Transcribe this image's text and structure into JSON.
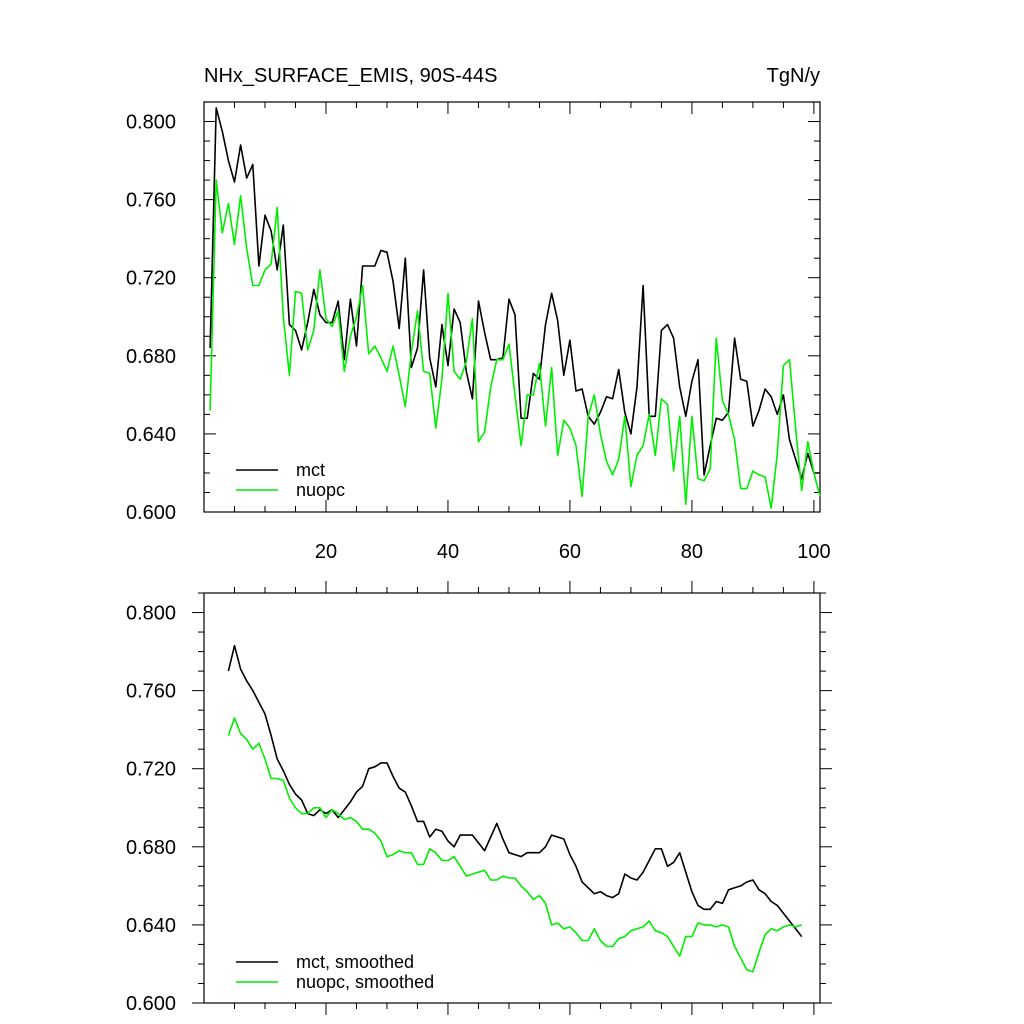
{
  "chart_data": [
    {
      "type": "line",
      "title_left": "NHx_SURFACE_EMIS, 90S-44S",
      "title_right": "TgN/y",
      "xlabel": "",
      "ylabel": "",
      "xlim": [
        0,
        101
      ],
      "ylim": [
        0.6,
        0.81
      ],
      "y_ticks": [
        "0.600",
        "0.640",
        "0.680",
        "0.720",
        "0.760",
        "0.800"
      ],
      "x_ticks": [
        "20",
        "40",
        "60",
        "80",
        "100"
      ],
      "legend_position": "bottom-left",
      "series": [
        {
          "name": "mct",
          "color": "#000000",
          "x": [
            1,
            2,
            3,
            4,
            5,
            6,
            7,
            8,
            9,
            10,
            11,
            12,
            13,
            14,
            15,
            16,
            17,
            18,
            19,
            20,
            21,
            22,
            23,
            24,
            25,
            26,
            27,
            28,
            29,
            30,
            31,
            32,
            33,
            34,
            35,
            36,
            37,
            38,
            39,
            40,
            41,
            42,
            43,
            44,
            45,
            46,
            47,
            48,
            49,
            50,
            51,
            52,
            53,
            54,
            55,
            56,
            57,
            58,
            59,
            60,
            61,
            62,
            63,
            64,
            65,
            66,
            67,
            68,
            69,
            70,
            71,
            72,
            73,
            74,
            75,
            76,
            77,
            78,
            79,
            80,
            81,
            82,
            83,
            84,
            85,
            86,
            87,
            88,
            89,
            90,
            91,
            92,
            93,
            94,
            95,
            96,
            97,
            98,
            99,
            100,
            101
          ],
          "values": [
            0.684,
            0.807,
            0.795,
            0.78,
            0.769,
            0.788,
            0.771,
            0.778,
            0.726,
            0.752,
            0.744,
            0.724,
            0.747,
            0.696,
            0.693,
            0.683,
            0.697,
            0.714,
            0.701,
            0.697,
            0.697,
            0.708,
            0.678,
            0.709,
            0.685,
            0.726,
            0.726,
            0.726,
            0.734,
            0.733,
            0.718,
            0.694,
            0.73,
            0.674,
            0.684,
            0.724,
            0.679,
            0.664,
            0.696,
            0.675,
            0.704,
            0.697,
            0.672,
            0.658,
            0.708,
            0.692,
            0.678,
            0.678,
            0.679,
            0.709,
            0.701,
            0.648,
            0.648,
            0.671,
            0.668,
            0.696,
            0.712,
            0.698,
            0.67,
            0.688,
            0.662,
            0.663,
            0.649,
            0.645,
            0.651,
            0.659,
            0.658,
            0.673,
            0.651,
            0.64,
            0.664,
            0.716,
            0.649,
            0.649,
            0.693,
            0.696,
            0.689,
            0.664,
            0.649,
            0.667,
            0.678,
            0.619,
            0.634,
            0.648,
            0.647,
            0.651,
            0.689,
            0.668,
            0.667,
            0.644,
            0.652,
            0.663,
            0.659,
            0.65,
            0.66,
            0.637,
            0.627,
            0.617,
            0.63,
            0.62,
            0.62
          ]
        },
        {
          "name": "nuopc",
          "color": "#00ee00",
          "x": [
            1,
            2,
            3,
            4,
            5,
            6,
            7,
            8,
            9,
            10,
            11,
            12,
            13,
            14,
            15,
            16,
            17,
            18,
            19,
            20,
            21,
            22,
            23,
            24,
            25,
            26,
            27,
            28,
            29,
            30,
            31,
            32,
            33,
            34,
            35,
            36,
            37,
            38,
            39,
            40,
            41,
            42,
            43,
            44,
            45,
            46,
            47,
            48,
            49,
            50,
            51,
            52,
            53,
            54,
            55,
            56,
            57,
            58,
            59,
            60,
            61,
            62,
            63,
            64,
            65,
            66,
            67,
            68,
            69,
            70,
            71,
            72,
            73,
            74,
            75,
            76,
            77,
            78,
            79,
            80,
            81,
            82,
            83,
            84,
            85,
            86,
            87,
            88,
            89,
            90,
            91,
            92,
            93,
            94,
            95,
            96,
            97,
            98,
            99,
            100,
            101
          ],
          "values": [
            0.652,
            0.77,
            0.743,
            0.758,
            0.737,
            0.762,
            0.735,
            0.716,
            0.716,
            0.724,
            0.727,
            0.756,
            0.7,
            0.67,
            0.713,
            0.712,
            0.683,
            0.693,
            0.724,
            0.699,
            0.695,
            0.703,
            0.672,
            0.69,
            0.7,
            0.716,
            0.681,
            0.685,
            0.679,
            0.672,
            0.685,
            0.67,
            0.654,
            0.682,
            0.703,
            0.672,
            0.671,
            0.643,
            0.668,
            0.712,
            0.672,
            0.668,
            0.677,
            0.699,
            0.636,
            0.641,
            0.664,
            0.678,
            0.678,
            0.686,
            0.66,
            0.634,
            0.66,
            0.66,
            0.676,
            0.644,
            0.674,
            0.629,
            0.647,
            0.643,
            0.634,
            0.608,
            0.649,
            0.66,
            0.64,
            0.626,
            0.619,
            0.627,
            0.649,
            0.613,
            0.629,
            0.634,
            0.65,
            0.629,
            0.658,
            0.655,
            0.621,
            0.649,
            0.604,
            0.649,
            0.617,
            0.616,
            0.622,
            0.689,
            0.657,
            0.65,
            0.637,
            0.612,
            0.612,
            0.621,
            0.619,
            0.618,
            0.602,
            0.63,
            0.675,
            0.678,
            0.643,
            0.611,
            0.636,
            0.62,
            0.608
          ]
        }
      ]
    },
    {
      "type": "line",
      "xlabel": "",
      "ylabel": "",
      "xlim": [
        0,
        101
      ],
      "ylim": [
        0.6,
        0.81
      ],
      "y_ticks": [
        "0.600",
        "0.640",
        "0.680",
        "0.720",
        "0.760",
        "0.800"
      ],
      "legend_position": "bottom-left",
      "series": [
        {
          "name": "mct, smoothed",
          "color": "#000000",
          "x": [
            4,
            5,
            6,
            7,
            8,
            9,
            10,
            11,
            12,
            13,
            14,
            15,
            16,
            17,
            18,
            19,
            20,
            21,
            22,
            23,
            24,
            25,
            26,
            27,
            28,
            29,
            30,
            31,
            32,
            33,
            34,
            35,
            36,
            37,
            38,
            39,
            40,
            41,
            42,
            43,
            44,
            45,
            46,
            47,
            48,
            49,
            50,
            51,
            52,
            53,
            54,
            55,
            56,
            57,
            58,
            59,
            60,
            61,
            62,
            63,
            64,
            65,
            66,
            67,
            68,
            69,
            70,
            71,
            72,
            73,
            74,
            75,
            76,
            77,
            78,
            79,
            80,
            81,
            82,
            83,
            84,
            85,
            86,
            87,
            88,
            89,
            90,
            91,
            92,
            93,
            94,
            95,
            96,
            97,
            98
          ],
          "values": [
            0.77,
            0.783,
            0.771,
            0.765,
            0.76,
            0.754,
            0.748,
            0.737,
            0.725,
            0.719,
            0.712,
            0.707,
            0.704,
            0.697,
            0.696,
            0.699,
            0.697,
            0.699,
            0.695,
            0.699,
            0.703,
            0.708,
            0.711,
            0.72,
            0.721,
            0.723,
            0.723,
            0.716,
            0.71,
            0.708,
            0.701,
            0.693,
            0.693,
            0.685,
            0.689,
            0.688,
            0.683,
            0.68,
            0.686,
            0.686,
            0.686,
            0.682,
            0.678,
            0.685,
            0.692,
            0.684,
            0.677,
            0.676,
            0.675,
            0.677,
            0.677,
            0.677,
            0.68,
            0.686,
            0.685,
            0.684,
            0.676,
            0.67,
            0.662,
            0.659,
            0.656,
            0.657,
            0.655,
            0.654,
            0.656,
            0.666,
            0.664,
            0.663,
            0.667,
            0.673,
            0.679,
            0.679,
            0.67,
            0.672,
            0.677,
            0.667,
            0.657,
            0.65,
            0.648,
            0.648,
            0.652,
            0.651,
            0.658,
            0.659,
            0.66,
            0.662,
            0.663,
            0.658,
            0.656,
            0.652,
            0.65,
            0.646,
            0.642,
            0.638,
            0.634
          ]
        },
        {
          "name": "nuopc, smoothed",
          "color": "#00ee00",
          "x": [
            4,
            5,
            6,
            7,
            8,
            9,
            10,
            11,
            12,
            13,
            14,
            15,
            16,
            17,
            18,
            19,
            20,
            21,
            22,
            23,
            24,
            25,
            26,
            27,
            28,
            29,
            30,
            31,
            32,
            33,
            34,
            35,
            36,
            37,
            38,
            39,
            40,
            41,
            42,
            43,
            44,
            45,
            46,
            47,
            48,
            49,
            50,
            51,
            52,
            53,
            54,
            55,
            56,
            57,
            58,
            59,
            60,
            61,
            62,
            63,
            64,
            65,
            66,
            67,
            68,
            69,
            70,
            71,
            72,
            73,
            74,
            75,
            76,
            77,
            78,
            79,
            80,
            81,
            82,
            83,
            84,
            85,
            86,
            87,
            88,
            89,
            90,
            91,
            92,
            93,
            94,
            95,
            96,
            97,
            98
          ],
          "values": [
            0.737,
            0.746,
            0.738,
            0.735,
            0.73,
            0.733,
            0.725,
            0.715,
            0.715,
            0.714,
            0.705,
            0.7,
            0.697,
            0.697,
            0.7,
            0.7,
            0.695,
            0.699,
            0.697,
            0.694,
            0.695,
            0.693,
            0.689,
            0.689,
            0.687,
            0.683,
            0.675,
            0.676,
            0.678,
            0.677,
            0.677,
            0.671,
            0.671,
            0.679,
            0.677,
            0.673,
            0.673,
            0.675,
            0.67,
            0.665,
            0.666,
            0.667,
            0.668,
            0.663,
            0.663,
            0.665,
            0.664,
            0.664,
            0.66,
            0.657,
            0.653,
            0.655,
            0.651,
            0.64,
            0.641,
            0.638,
            0.639,
            0.636,
            0.632,
            0.632,
            0.638,
            0.632,
            0.629,
            0.629,
            0.633,
            0.634,
            0.637,
            0.638,
            0.639,
            0.642,
            0.637,
            0.636,
            0.634,
            0.629,
            0.624,
            0.634,
            0.634,
            0.641,
            0.64,
            0.64,
            0.639,
            0.64,
            0.639,
            0.629,
            0.623,
            0.617,
            0.616,
            0.626,
            0.635,
            0.638,
            0.637,
            0.639,
            0.64,
            0.639,
            0.64
          ]
        }
      ]
    }
  ]
}
